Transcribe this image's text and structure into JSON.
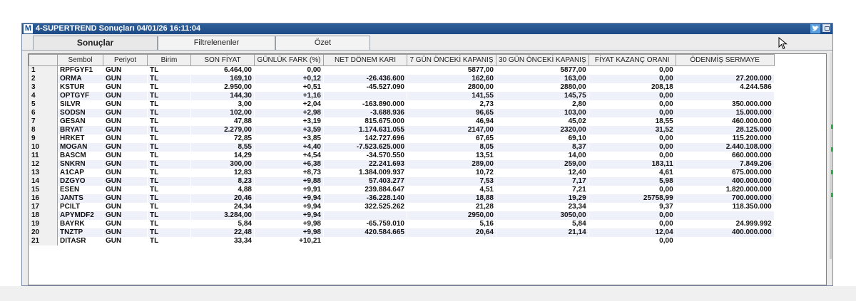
{
  "window": {
    "app_icon": "M",
    "title": "4-SUPERTREND Sonuçları  04/01/26 16:11:04"
  },
  "tabs": [
    {
      "label": "Sonuçlar",
      "active": true
    },
    {
      "label": "Filtrelenenler",
      "active": false
    },
    {
      "label": "Özet",
      "active": false
    }
  ],
  "table": {
    "columns": [
      "",
      "Sembol",
      "Periyot",
      "Birim",
      "SON FİYAT",
      "GÜNLÜK FARK (%)",
      "NET DÖNEM KARI",
      "7 GÜN ÖNCEKİ KAPANIŞ",
      "30 GÜN ÖNCEKİ KAPANIŞ",
      "FİYAT KAZANÇ ORANI",
      "ÖDENMİŞ SERMAYE"
    ],
    "rows": [
      [
        "1",
        "RPFGYF1",
        "GUN",
        "TL",
        "6.464,00",
        "0,00",
        "",
        "5877,00",
        "5877,00",
        "0,00",
        ""
      ],
      [
        "2",
        "ORMA",
        "GUN",
        "TL",
        "169,10",
        "+0,12",
        "-26.436.600",
        "162,60",
        "163,00",
        "0,00",
        "27.200.000"
      ],
      [
        "3",
        "KSTUR",
        "GUN",
        "TL",
        "2.950,00",
        "+0,51",
        "-45.527.090",
        "2800,00",
        "2880,00",
        "208,18",
        "4.244.586"
      ],
      [
        "4",
        "OPTGYF",
        "GUN",
        "TL",
        "144,30",
        "+1,16",
        "",
        "141,55",
        "145,75",
        "0,00",
        ""
      ],
      [
        "5",
        "SILVR",
        "GUN",
        "TL",
        "3,00",
        "+2,04",
        "-163.890.000",
        "2,73",
        "2,80",
        "0,00",
        "350.000.000"
      ],
      [
        "6",
        "SODSN",
        "GUN",
        "TL",
        "102,00",
        "+2,98",
        "-3.688.936",
        "96,65",
        "103,00",
        "0,00",
        "15.000.000"
      ],
      [
        "7",
        "GESAN",
        "GUN",
        "TL",
        "47,88",
        "+3,19",
        "815.675.000",
        "46,94",
        "45,02",
        "18,55",
        "460.000.000"
      ],
      [
        "8",
        "BRYAT",
        "GUN",
        "TL",
        "2.279,00",
        "+3,59",
        "1.174.631.055",
        "2147,00",
        "2320,00",
        "31,52",
        "28.125.000"
      ],
      [
        "9",
        "HRKET",
        "GUN",
        "TL",
        "72,85",
        "+3,85",
        "142.727.696",
        "67,65",
        "69,10",
        "0,00",
        "115.200.000"
      ],
      [
        "10",
        "MOGAN",
        "GUN",
        "TL",
        "8,55",
        "+4,40",
        "-7.523.625.000",
        "8,05",
        "8,37",
        "0,00",
        "2.440.108.000"
      ],
      [
        "11",
        "BASCM",
        "GUN",
        "TL",
        "14,29",
        "+4,54",
        "-34.570.550",
        "13,51",
        "14,00",
        "0,00",
        "660.000.000"
      ],
      [
        "12",
        "SNKRN",
        "GUN",
        "TL",
        "300,00",
        "+6,38",
        "22.241.693",
        "289,00",
        "259,00",
        "183,11",
        "7.849.206"
      ],
      [
        "13",
        "A1CAP",
        "GUN",
        "TL",
        "12,83",
        "+8,73",
        "1.384.009.937",
        "10,72",
        "12,40",
        "4,61",
        "675.000.000"
      ],
      [
        "14",
        "DZGYO",
        "GUN",
        "TL",
        "8,23",
        "+9,88",
        "57.403.277",
        "7,53",
        "7,17",
        "5,98",
        "400.000.000"
      ],
      [
        "15",
        "ESEN",
        "GUN",
        "TL",
        "4,88",
        "+9,91",
        "239.884.647",
        "4,51",
        "7,21",
        "0,00",
        "1.820.000.000"
      ],
      [
        "16",
        "JANTS",
        "GUN",
        "TL",
        "20,46",
        "+9,94",
        "-36.228.140",
        "18,88",
        "19,29",
        "25758,99",
        "700.000.000"
      ],
      [
        "17",
        "PCILT",
        "GUN",
        "TL",
        "24,34",
        "+9,94",
        "322.525.262",
        "21,28",
        "23,34",
        "9,37",
        "118.350.000"
      ],
      [
        "18",
        "APYMDF2",
        "GUN",
        "TL",
        "3.284,00",
        "+9,94",
        "",
        "2950,00",
        "3050,00",
        "0,00",
        ""
      ],
      [
        "19",
        "BAYRK",
        "GUN",
        "TL",
        "5,84",
        "+9,98",
        "-65.759.010",
        "5,16",
        "5,84",
        "0,00",
        "24.999.992"
      ],
      [
        "20",
        "TNZTP",
        "GUN",
        "TL",
        "22,48",
        "+9,98",
        "420.584.665",
        "20,64",
        "21,14",
        "12,04",
        "400.000.000"
      ],
      [
        "21",
        "DITASR",
        "GUN",
        "TL",
        "33,34",
        "+10,21",
        "",
        "",
        "",
        "0,00",
        ""
      ]
    ]
  },
  "colors": {
    "titlebar": "#1c4a86",
    "row_alt": "#eef0fa",
    "header": "#f0f0f0"
  }
}
